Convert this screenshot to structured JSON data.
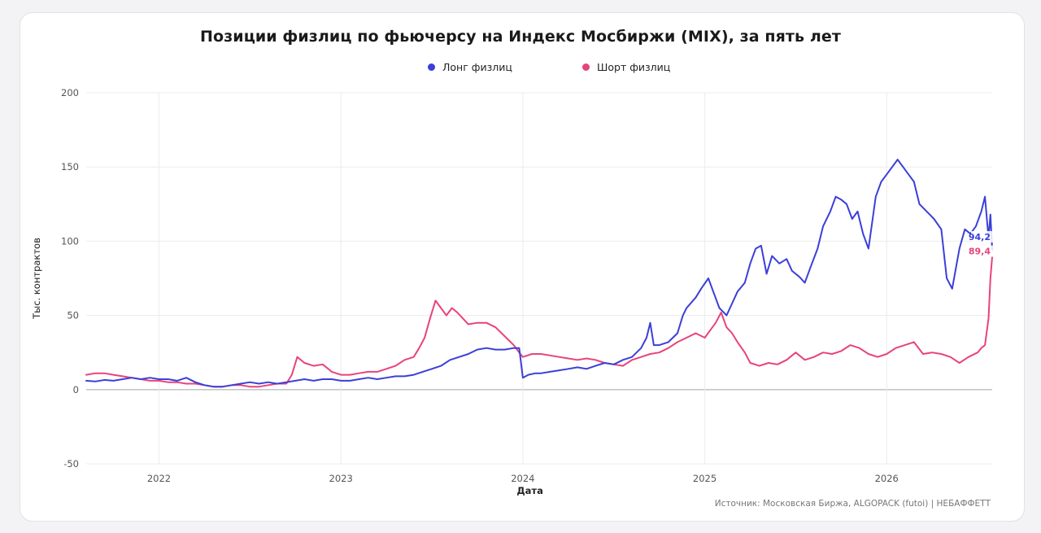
{
  "title": "Позиции физлиц по фьючерсу на Индекс Мосбиржи (MIX), за пять лет",
  "source": "Источник: Московская Биржа, ALGOPACK (futoi) | НЕБАФФЕТТ",
  "colors": {
    "long": "#3b3fd8",
    "short": "#e8437a",
    "zero_line": "#bdbdbd",
    "grid": "#ececec"
  },
  "chart_data": {
    "type": "line",
    "title": "Позиции физлиц по фьючерсу на Индекс Мосбиржи (MIX), за пять лет",
    "xlabel": "Дата",
    "ylabel": "Тыс. контрактов",
    "ylim": [
      -50,
      200
    ],
    "xlim": [
      2021.6,
      2026.58
    ],
    "yticks": [
      -50,
      0,
      50,
      100,
      150,
      200
    ],
    "xticks": [
      2022,
      2023,
      2024,
      2025,
      2026
    ],
    "xtick_labels": [
      "2022",
      "2023",
      "2024",
      "2025",
      "2026"
    ],
    "grid": true,
    "legend_position": "top-center",
    "series": [
      {
        "name": "Лонг физлиц",
        "color": "#3b3fd8",
        "last_label": "94,2",
        "points": [
          [
            2021.6,
            6
          ],
          [
            2021.65,
            5.5
          ],
          [
            2021.7,
            6.5
          ],
          [
            2021.75,
            6
          ],
          [
            2021.8,
            7
          ],
          [
            2021.85,
            8
          ],
          [
            2021.9,
            7
          ],
          [
            2021.95,
            8
          ],
          [
            2022.0,
            7
          ],
          [
            2022.05,
            7
          ],
          [
            2022.1,
            6
          ],
          [
            2022.15,
            8
          ],
          [
            2022.2,
            5
          ],
          [
            2022.25,
            3
          ],
          [
            2022.3,
            2
          ],
          [
            2022.35,
            2
          ],
          [
            2022.4,
            3
          ],
          [
            2022.45,
            4
          ],
          [
            2022.5,
            5
          ],
          [
            2022.55,
            4
          ],
          [
            2022.6,
            5
          ],
          [
            2022.65,
            4
          ],
          [
            2022.7,
            5
          ],
          [
            2022.75,
            6
          ],
          [
            2022.8,
            7
          ],
          [
            2022.85,
            6
          ],
          [
            2022.9,
            7
          ],
          [
            2022.95,
            7
          ],
          [
            2023.0,
            6
          ],
          [
            2023.05,
            6
          ],
          [
            2023.1,
            7
          ],
          [
            2023.15,
            8
          ],
          [
            2023.2,
            7
          ],
          [
            2023.25,
            8
          ],
          [
            2023.3,
            9
          ],
          [
            2023.35,
            9
          ],
          [
            2023.4,
            10
          ],
          [
            2023.45,
            12
          ],
          [
            2023.5,
            14
          ],
          [
            2023.55,
            16
          ],
          [
            2023.6,
            20
          ],
          [
            2023.65,
            22
          ],
          [
            2023.7,
            24
          ],
          [
            2023.75,
            27
          ],
          [
            2023.8,
            28
          ],
          [
            2023.85,
            27
          ],
          [
            2023.9,
            27
          ],
          [
            2023.95,
            28
          ],
          [
            2023.98,
            28
          ],
          [
            2024.0,
            8
          ],
          [
            2024.03,
            10
          ],
          [
            2024.07,
            11
          ],
          [
            2024.1,
            11
          ],
          [
            2024.15,
            12
          ],
          [
            2024.2,
            13
          ],
          [
            2024.25,
            14
          ],
          [
            2024.3,
            15
          ],
          [
            2024.35,
            14
          ],
          [
            2024.4,
            16
          ],
          [
            2024.45,
            18
          ],
          [
            2024.5,
            17
          ],
          [
            2024.55,
            20
          ],
          [
            2024.6,
            22
          ],
          [
            2024.65,
            28
          ],
          [
            2024.68,
            35
          ],
          [
            2024.7,
            45
          ],
          [
            2024.72,
            30
          ],
          [
            2024.75,
            30
          ],
          [
            2024.8,
            32
          ],
          [
            2024.85,
            38
          ],
          [
            2024.88,
            50
          ],
          [
            2024.9,
            55
          ],
          [
            2024.95,
            62
          ],
          [
            2024.98,
            68
          ],
          [
            2025.02,
            75
          ],
          [
            2025.05,
            65
          ],
          [
            2025.08,
            55
          ],
          [
            2025.12,
            50
          ],
          [
            2025.15,
            58
          ],
          [
            2025.18,
            66
          ],
          [
            2025.22,
            72
          ],
          [
            2025.25,
            85
          ],
          [
            2025.28,
            95
          ],
          [
            2025.31,
            97
          ],
          [
            2025.34,
            78
          ],
          [
            2025.37,
            90
          ],
          [
            2025.41,
            85
          ],
          [
            2025.45,
            88
          ],
          [
            2025.48,
            80
          ],
          [
            2025.52,
            76
          ],
          [
            2025.55,
            72
          ],
          [
            2025.58,
            82
          ],
          [
            2025.62,
            95
          ],
          [
            2025.65,
            110
          ],
          [
            2025.69,
            120
          ],
          [
            2025.72,
            130
          ],
          [
            2025.75,
            128
          ],
          [
            2025.78,
            125
          ],
          [
            2025.81,
            115
          ],
          [
            2025.84,
            120
          ],
          [
            2025.87,
            105
          ],
          [
            2025.9,
            95
          ],
          [
            2025.94,
            130
          ],
          [
            2025.97,
            140
          ],
          [
            2026.0,
            145
          ],
          [
            2026.03,
            150
          ],
          [
            2026.06,
            155
          ],
          [
            2026.09,
            150
          ],
          [
            2026.12,
            145
          ],
          [
            2026.15,
            140
          ],
          [
            2026.18,
            125
          ],
          [
            2026.22,
            120
          ],
          [
            2026.26,
            115
          ],
          [
            2026.3,
            108
          ],
          [
            2026.33,
            75
          ],
          [
            2026.36,
            68
          ],
          [
            2026.4,
            95
          ],
          [
            2026.43,
            108
          ],
          [
            2026.46,
            105
          ],
          [
            2026.49,
            110
          ],
          [
            2026.52,
            120
          ],
          [
            2026.54,
            130
          ],
          [
            2026.56,
            102
          ],
          [
            2026.57,
            118
          ],
          [
            2026.58,
            94.2
          ]
        ]
      },
      {
        "name": "Шорт физлиц",
        "color": "#e8437a",
        "last_label": "89,4",
        "points": [
          [
            2021.6,
            10
          ],
          [
            2021.65,
            11
          ],
          [
            2021.7,
            11
          ],
          [
            2021.75,
            10
          ],
          [
            2021.8,
            9
          ],
          [
            2021.85,
            8
          ],
          [
            2021.9,
            7
          ],
          [
            2021.95,
            6
          ],
          [
            2022.0,
            6
          ],
          [
            2022.05,
            5
          ],
          [
            2022.1,
            5
          ],
          [
            2022.15,
            4
          ],
          [
            2022.2,
            4
          ],
          [
            2022.25,
            3
          ],
          [
            2022.3,
            2
          ],
          [
            2022.35,
            2
          ],
          [
            2022.4,
            3
          ],
          [
            2022.45,
            3
          ],
          [
            2022.5,
            2
          ],
          [
            2022.55,
            2
          ],
          [
            2022.6,
            3
          ],
          [
            2022.65,
            4
          ],
          [
            2022.7,
            4
          ],
          [
            2022.73,
            10
          ],
          [
            2022.76,
            22
          ],
          [
            2022.8,
            18
          ],
          [
            2022.85,
            16
          ],
          [
            2022.9,
            17
          ],
          [
            2022.95,
            12
          ],
          [
            2023.0,
            10
          ],
          [
            2023.05,
            10
          ],
          [
            2023.1,
            11
          ],
          [
            2023.15,
            12
          ],
          [
            2023.2,
            12
          ],
          [
            2023.25,
            14
          ],
          [
            2023.3,
            16
          ],
          [
            2023.35,
            20
          ],
          [
            2023.4,
            22
          ],
          [
            2023.43,
            28
          ],
          [
            2023.46,
            35
          ],
          [
            2023.49,
            48
          ],
          [
            2023.52,
            60
          ],
          [
            2023.55,
            55
          ],
          [
            2023.58,
            50
          ],
          [
            2023.61,
            55
          ],
          [
            2023.64,
            52
          ],
          [
            2023.67,
            48
          ],
          [
            2023.7,
            44
          ],
          [
            2023.75,
            45
          ],
          [
            2023.8,
            45
          ],
          [
            2023.85,
            42
          ],
          [
            2023.9,
            36
          ],
          [
            2023.95,
            30
          ],
          [
            2023.98,
            25
          ],
          [
            2024.0,
            22
          ],
          [
            2024.05,
            24
          ],
          [
            2024.1,
            24
          ],
          [
            2024.15,
            23
          ],
          [
            2024.2,
            22
          ],
          [
            2024.25,
            21
          ],
          [
            2024.3,
            20
          ],
          [
            2024.35,
            21
          ],
          [
            2024.4,
            20
          ],
          [
            2024.45,
            18
          ],
          [
            2024.5,
            17
          ],
          [
            2024.55,
            16
          ],
          [
            2024.6,
            20
          ],
          [
            2024.65,
            22
          ],
          [
            2024.7,
            24
          ],
          [
            2024.75,
            25
          ],
          [
            2024.8,
            28
          ],
          [
            2024.85,
            32
          ],
          [
            2024.9,
            35
          ],
          [
            2024.95,
            38
          ],
          [
            2025.0,
            35
          ],
          [
            2025.03,
            40
          ],
          [
            2025.06,
            45
          ],
          [
            2025.09,
            52
          ],
          [
            2025.12,
            42
          ],
          [
            2025.15,
            38
          ],
          [
            2025.18,
            32
          ],
          [
            2025.22,
            25
          ],
          [
            2025.25,
            18
          ],
          [
            2025.3,
            16
          ],
          [
            2025.35,
            18
          ],
          [
            2025.4,
            17
          ],
          [
            2025.45,
            20
          ],
          [
            2025.5,
            25
          ],
          [
            2025.55,
            20
          ],
          [
            2025.6,
            22
          ],
          [
            2025.65,
            25
          ],
          [
            2025.7,
            24
          ],
          [
            2025.75,
            26
          ],
          [
            2025.8,
            30
          ],
          [
            2025.85,
            28
          ],
          [
            2025.9,
            24
          ],
          [
            2025.95,
            22
          ],
          [
            2026.0,
            24
          ],
          [
            2026.05,
            28
          ],
          [
            2026.1,
            30
          ],
          [
            2026.15,
            32
          ],
          [
            2026.2,
            24
          ],
          [
            2026.25,
            25
          ],
          [
            2026.3,
            24
          ],
          [
            2026.35,
            22
          ],
          [
            2026.4,
            18
          ],
          [
            2026.45,
            22
          ],
          [
            2026.5,
            25
          ],
          [
            2026.52,
            28
          ],
          [
            2026.54,
            30
          ],
          [
            2026.56,
            48
          ],
          [
            2026.57,
            75
          ],
          [
            2026.58,
            89.4
          ]
        ]
      }
    ]
  }
}
